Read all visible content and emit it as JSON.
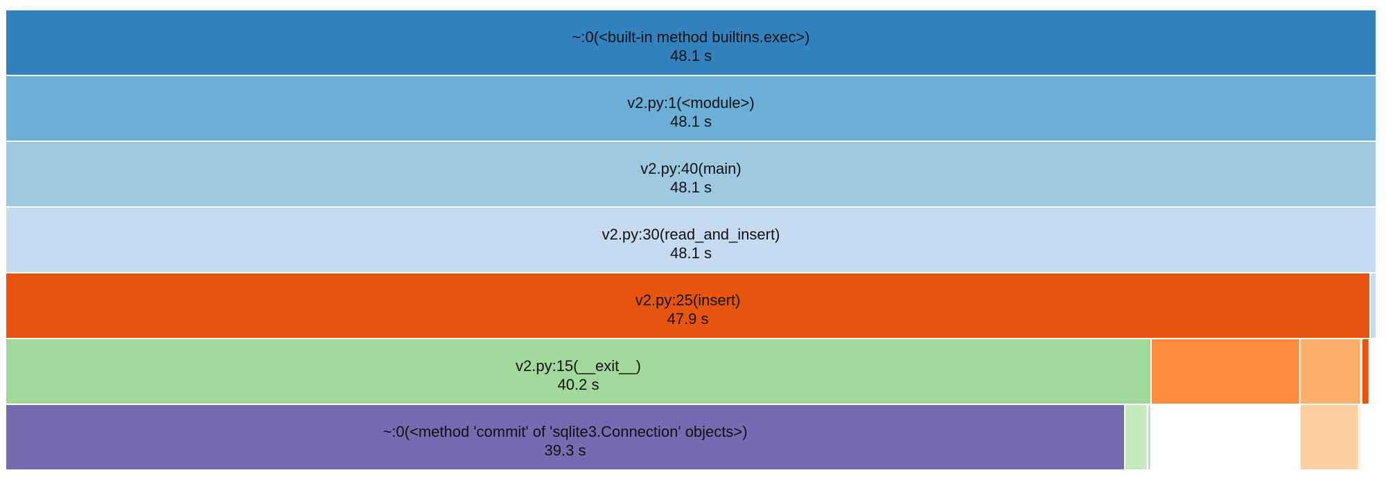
{
  "chart_data": {
    "type": "icicle",
    "unit": "s",
    "total": 48.1,
    "levels": [
      [
        {
          "label": "~:0(<built-in method builtins.exec>)",
          "value": "48.1 s",
          "start": 0,
          "size": 1.0,
          "color": "#3182bd"
        }
      ],
      [
        {
          "label": "v2.py:1(<module>)",
          "value": "48.1 s",
          "start": 0,
          "size": 1.0,
          "color": "#6baed6"
        }
      ],
      [
        {
          "label": "v2.py:40(main)",
          "value": "48.1 s",
          "start": 0,
          "size": 1.0,
          "color": "#9ecae1"
        }
      ],
      [
        {
          "label": "v2.py:30(read_and_insert)",
          "value": "48.1 s",
          "start": 0,
          "size": 1.0,
          "color": "#c6dbef"
        }
      ],
      [
        {
          "label": "v2.py:25(insert)",
          "value": "47.9 s",
          "start": 0,
          "size": 0.9955,
          "color": "#e6550d"
        },
        {
          "label": "",
          "value": "",
          "start": 0.9955,
          "size": 0.0045,
          "color": "#c6dbef"
        }
      ],
      [
        {
          "label": "v2.py:15(__exit__)",
          "value": "40.2 s",
          "start": 0,
          "size": 0.8357,
          "color": "#a1d99b"
        },
        {
          "label": "",
          "value": "",
          "start": 0.8357,
          "size": 0.1085,
          "color": "#fd8d3c"
        },
        {
          "label": "",
          "value": "",
          "start": 0.9442,
          "size": 0.0445,
          "color": "#fdae6b"
        },
        {
          "label": "",
          "value": "",
          "start": 0.9893,
          "size": 0.0055,
          "color": "#e6550d"
        }
      ],
      [
        {
          "label": "~:0(<method 'commit' of 'sqlite3.Connection' objects>)",
          "value": "39.3 s",
          "start": 0,
          "size": 0.8165,
          "color": "#756bb1"
        },
        {
          "label": "",
          "value": "",
          "start": 0.8165,
          "size": 0.0165,
          "color": "#c7e9c0"
        },
        {
          "label": "",
          "value": "",
          "start": 0.8334,
          "size": 0.002,
          "color": "#a1d99b"
        },
        {
          "label": "",
          "value": "",
          "start": 0.9442,
          "size": 0.043,
          "color": "#fdd0a2"
        },
        {
          "label": "",
          "value": "",
          "start": 0.9875,
          "size": 0.0012,
          "color": "#fdae6b"
        }
      ]
    ]
  }
}
